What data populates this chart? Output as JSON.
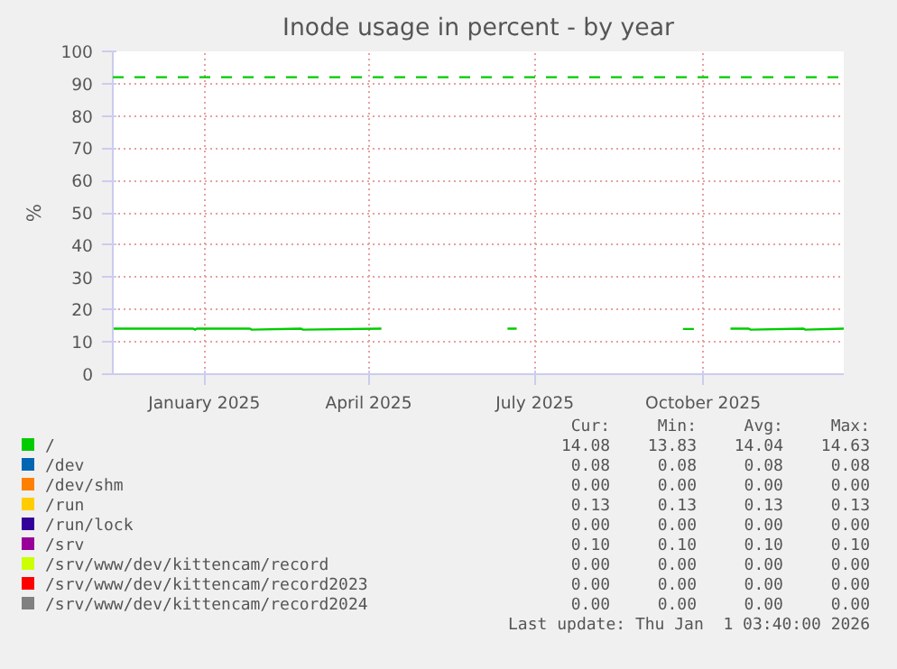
{
  "chart_data": {
    "type": "line",
    "title": "Inode usage in percent - by year",
    "ylabel": "%",
    "x": [
      "2024-11-27",
      "2024-12-20",
      "2025-01-10",
      "2025-01-11",
      "2025-01-12",
      "2025-02-10",
      "2025-02-11",
      "2025-03-10",
      "2025-03-11",
      "2025-04-23",
      "2025-05-01",
      "2025-07-01",
      "2025-07-06",
      "2025-08-01",
      "2025-10-05",
      "2025-10-11",
      "2025-10-20",
      "2025-10-31",
      "2025-11-10",
      "2025-11-11",
      "2025-12-10",
      "2025-12-11",
      "2026-01-01"
    ],
    "series": [
      {
        "name": "/",
        "color": "#00cc00",
        "values": [
          14.1,
          14.1,
          14.1,
          13.8,
          14.1,
          14.1,
          13.8,
          14.1,
          13.8,
          14.1,
          null,
          14.1,
          14.1,
          null,
          14.0,
          14.0,
          null,
          14.1,
          14.1,
          13.8,
          14.1,
          13.8,
          14.1
        ]
      },
      {
        "name": "/dev",
        "color": "#0066b3",
        "values": [
          null,
          null,
          null,
          null,
          null,
          null,
          null,
          null,
          null,
          null,
          null,
          null,
          null,
          null,
          null,
          null,
          null,
          null,
          null,
          null,
          null,
          null,
          null
        ]
      },
      {
        "name": "/dev/shm",
        "color": "#ff8000",
        "values": [
          null,
          null,
          null,
          null,
          null,
          null,
          null,
          null,
          null,
          null,
          null,
          null,
          null,
          null,
          null,
          null,
          null,
          null,
          null,
          null,
          null,
          null,
          null
        ]
      },
      {
        "name": "/run",
        "color": "#ffcc00",
        "values": [
          null,
          null,
          null,
          null,
          null,
          null,
          null,
          null,
          null,
          null,
          null,
          null,
          null,
          null,
          null,
          null,
          null,
          null,
          null,
          null,
          null,
          null,
          null
        ]
      },
      {
        "name": "/run/lock",
        "color": "#330099",
        "values": [
          null,
          null,
          null,
          null,
          null,
          null,
          null,
          null,
          null,
          null,
          null,
          null,
          null,
          null,
          null,
          null,
          null,
          null,
          null,
          null,
          null,
          null,
          null
        ]
      },
      {
        "name": "/srv",
        "color": "#990099",
        "values": [
          null,
          null,
          null,
          null,
          null,
          null,
          null,
          null,
          null,
          null,
          null,
          null,
          null,
          null,
          null,
          null,
          null,
          null,
          null,
          null,
          null,
          null,
          null
        ]
      },
      {
        "name": "/srv/www/dev/kittencam/record",
        "color": "#ccff00",
        "values": [
          null,
          null,
          null,
          null,
          null,
          null,
          null,
          null,
          null,
          null,
          null,
          null,
          null,
          null,
          null,
          null,
          null,
          null,
          null,
          null,
          null,
          null,
          null
        ]
      },
      {
        "name": "/srv/www/dev/kittencam/record2023",
        "color": "#ff0000",
        "values": [
          null,
          null,
          null,
          null,
          null,
          null,
          null,
          null,
          null,
          null,
          null,
          null,
          null,
          null,
          null,
          null,
          null,
          null,
          null,
          null,
          null,
          null,
          null
        ]
      },
      {
        "name": "/srv/www/dev/kittencam/record2024",
        "color": "#808080",
        "values": [
          null,
          null,
          null,
          null,
          null,
          null,
          null,
          null,
          null,
          null,
          null,
          null,
          null,
          null,
          null,
          null,
          null,
          null,
          null,
          null,
          null,
          null,
          null
        ]
      }
    ],
    "ref_lines": [
      {
        "axis": "y",
        "value": 92,
        "color": "#00cc00",
        "line_style": "dashed"
      }
    ],
    "xlim": [
      "2024-11-27",
      "2026-01-01"
    ],
    "xticks": [
      {
        "value": "2025-01-16",
        "label": "January 2025"
      },
      {
        "value": "2025-04-16",
        "label": "April 2025"
      },
      {
        "value": "2025-07-16",
        "label": "July 2025"
      },
      {
        "value": "2025-10-16",
        "label": "October 2025"
      }
    ],
    "ylim": [
      0,
      100
    ],
    "yticks": [
      0,
      10,
      20,
      30,
      40,
      50,
      60,
      70,
      80,
      90,
      100
    ],
    "grid": true,
    "legend": "bottom",
    "annotations": [
      "Cur:",
      "Min:",
      "Avg:",
      "Max:",
      "14.08",
      "13.83",
      "14.04",
      "14.63",
      "0.08",
      "0.08",
      "0.08",
      "0.08",
      "0.00",
      "0.00",
      "0.00",
      "0.00",
      "0.13",
      "0.13",
      "0.13",
      "0.13",
      "0.00",
      "0.00",
      "0.00",
      "0.00",
      "0.10",
      "0.10",
      "0.10",
      "0.10",
      "0.00",
      "0.00",
      "0.00",
      "0.00",
      "0.00",
      "0.00",
      "0.00",
      "0.00",
      "0.00",
      "0.00",
      "0.00",
      "0.00",
      "Last update: Thu Jan  1 03:40:00 2026"
    ]
  }
}
